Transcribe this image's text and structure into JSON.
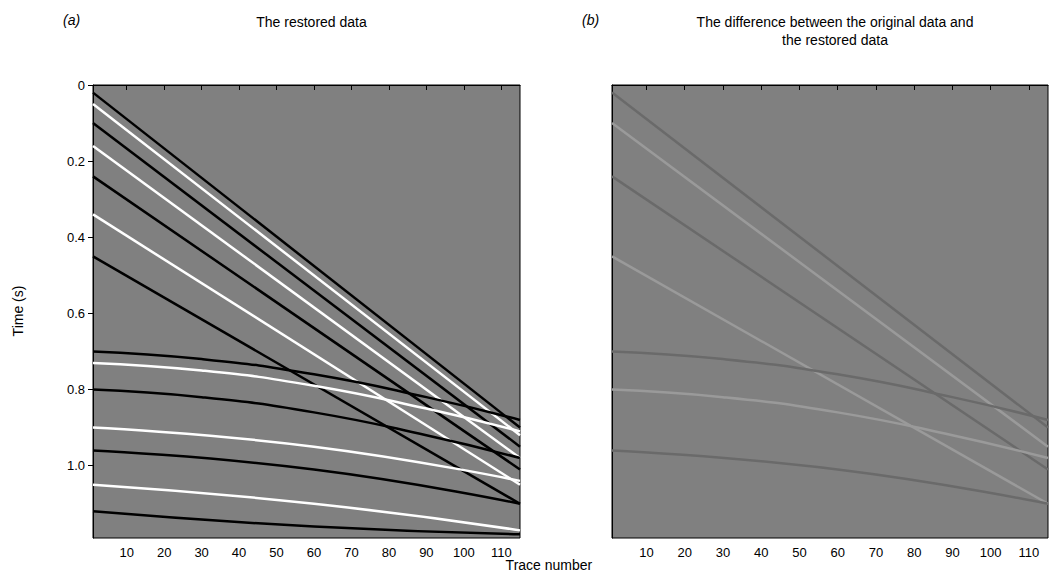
{
  "xlabel": "Trace number",
  "ylabel": "Time (s)",
  "chart_data": [
    {
      "type": "line",
      "label": "(a)",
      "title": "The restored data",
      "xlim": [
        1,
        115
      ],
      "xticks": [
        10,
        20,
        30,
        40,
        50,
        60,
        70,
        80,
        90,
        100,
        110
      ],
      "ylim": [
        0,
        1.19
      ],
      "yticks": [
        0,
        0.2,
        0.4,
        0.6,
        0.8,
        {
          "value": 1,
          "label": "1.0"
        }
      ],
      "tick_labels": true,
      "grid": false,
      "series": [
        {
          "color": "#000000",
          "x": [
            1,
            115
          ],
          "values": [
            0.02,
            0.9
          ]
        },
        {
          "color": "#ffffff",
          "x": [
            1,
            115
          ],
          "values": [
            0.05,
            0.92
          ]
        },
        {
          "color": "#000000",
          "x": [
            1,
            115
          ],
          "values": [
            0.1,
            0.95
          ]
        },
        {
          "color": "#ffffff",
          "x": [
            1,
            115
          ],
          "values": [
            0.16,
            0.98
          ]
        },
        {
          "color": "#000000",
          "x": [
            1,
            115
          ],
          "values": [
            0.24,
            1.01
          ]
        },
        {
          "color": "#ffffff",
          "x": [
            1,
            115
          ],
          "values": [
            0.34,
            1.05
          ]
        },
        {
          "color": "#000000",
          "x": [
            1,
            115
          ],
          "values": [
            0.45,
            1.1
          ]
        },
        {
          "color": "#000000",
          "x": [
            1,
            30,
            60,
            90,
            115
          ],
          "values": [
            0.7,
            0.72,
            0.76,
            0.82,
            0.88
          ]
        },
        {
          "color": "#ffffff",
          "x": [
            1,
            30,
            60,
            90,
            115
          ],
          "values": [
            0.73,
            0.75,
            0.79,
            0.85,
            0.91
          ]
        },
        {
          "color": "#000000",
          "x": [
            1,
            30,
            60,
            90,
            115
          ],
          "values": [
            0.8,
            0.82,
            0.86,
            0.92,
            0.98
          ]
        },
        {
          "color": "#ffffff",
          "x": [
            1,
            60,
            115
          ],
          "values": [
            0.9,
            0.95,
            1.04
          ]
        },
        {
          "color": "#000000",
          "x": [
            1,
            60,
            115
          ],
          "values": [
            0.96,
            1.01,
            1.1
          ]
        },
        {
          "color": "#ffffff",
          "x": [
            1,
            60,
            115
          ],
          "values": [
            1.05,
            1.1,
            1.17
          ]
        },
        {
          "color": "#000000",
          "x": [
            1,
            60,
            115
          ],
          "values": [
            1.12,
            1.16,
            1.18
          ]
        }
      ]
    },
    {
      "type": "line",
      "label": "(b)",
      "title": "The difference between the original data and the restored data",
      "xlim": [
        1,
        115
      ],
      "xticks": [
        10,
        20,
        30,
        40,
        50,
        60,
        70,
        80,
        90,
        100,
        110
      ],
      "ylim": [
        0,
        1.19
      ],
      "tick_labels": "x",
      "grid": false,
      "series": [
        {
          "color": "#6a6a6a",
          "x": [
            1,
            115
          ],
          "values": [
            0.02,
            0.9
          ]
        },
        {
          "color": "#9a9a9a",
          "x": [
            1,
            115
          ],
          "values": [
            0.1,
            0.95
          ]
        },
        {
          "color": "#6a6a6a",
          "x": [
            1,
            115
          ],
          "values": [
            0.24,
            1.01
          ]
        },
        {
          "color": "#9a9a9a",
          "x": [
            1,
            115
          ],
          "values": [
            0.45,
            1.1
          ]
        },
        {
          "color": "#6a6a6a",
          "x": [
            1,
            30,
            60,
            90,
            115
          ],
          "values": [
            0.7,
            0.72,
            0.76,
            0.82,
            0.88
          ]
        },
        {
          "color": "#9a9a9a",
          "x": [
            1,
            30,
            60,
            90,
            115
          ],
          "values": [
            0.8,
            0.82,
            0.86,
            0.92,
            0.98
          ]
        },
        {
          "color": "#6a6a6a",
          "x": [
            1,
            60,
            115
          ],
          "values": [
            0.96,
            1.01,
            1.1
          ]
        }
      ]
    }
  ]
}
